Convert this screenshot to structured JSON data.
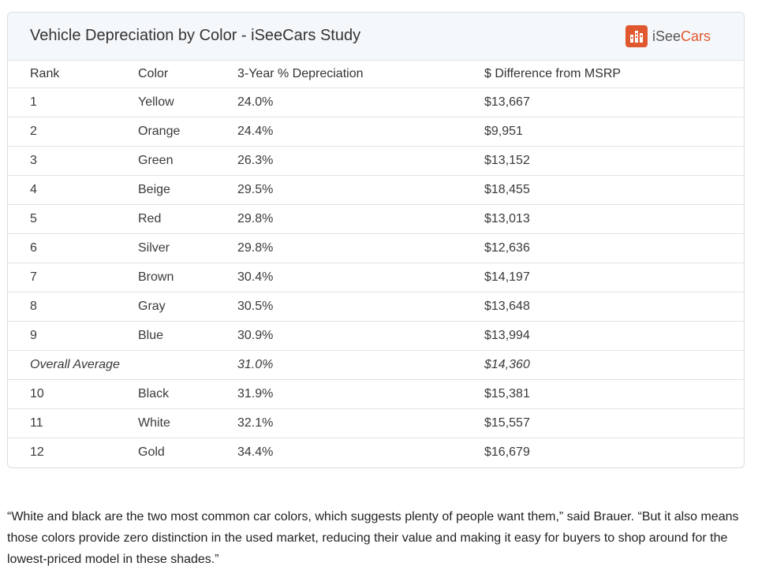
{
  "card": {
    "title": "Vehicle Depreciation by Color - iSeeCars Study",
    "brand": {
      "prefix": "iSee",
      "accent": "Cars",
      "icon": "building-logo-icon",
      "color": "#e0582f"
    }
  },
  "table": {
    "columns": [
      "Rank",
      "Color",
      "3-Year % Depreciation",
      "$ Difference from MSRP"
    ],
    "rows": [
      {
        "rank": "1",
        "color": "Yellow",
        "depreciation": "24.0%",
        "difference": "$13,667"
      },
      {
        "rank": "2",
        "color": "Orange",
        "depreciation": "24.4%",
        "difference": "$9,951"
      },
      {
        "rank": "3",
        "color": "Green",
        "depreciation": "26.3%",
        "difference": "$13,152"
      },
      {
        "rank": "4",
        "color": "Beige",
        "depreciation": "29.5%",
        "difference": "$18,455"
      },
      {
        "rank": "5",
        "color": "Red",
        "depreciation": "29.8%",
        "difference": "$13,013"
      },
      {
        "rank": "6",
        "color": "Silver",
        "depreciation": "29.8%",
        "difference": "$12,636"
      },
      {
        "rank": "7",
        "color": "Brown",
        "depreciation": "30.4%",
        "difference": "$14,197"
      },
      {
        "rank": "8",
        "color": "Gray",
        "depreciation": "30.5%",
        "difference": "$13,648"
      },
      {
        "rank": "9",
        "color": "Blue",
        "depreciation": "30.9%",
        "difference": "$13,994"
      },
      {
        "rank": "Overall Average",
        "color": "",
        "depreciation": "31.0%",
        "difference": "$14,360",
        "average": true
      },
      {
        "rank": "10",
        "color": "Black",
        "depreciation": "31.9%",
        "difference": "$15,381"
      },
      {
        "rank": "11",
        "color": "White",
        "depreciation": "32.1%",
        "difference": "$15,557"
      },
      {
        "rank": "12",
        "color": "Gold",
        "depreciation": "34.4%",
        "difference": "$16,679"
      }
    ]
  },
  "quote": {
    "text": "“White and black are the two most common car colors, which suggests plenty of people want them,” said Brauer. “But it also means those colors provide zero distinction in the used market, reducing their value and making it easy for buyers to shop around for the lowest-priced model in these shades.”"
  }
}
